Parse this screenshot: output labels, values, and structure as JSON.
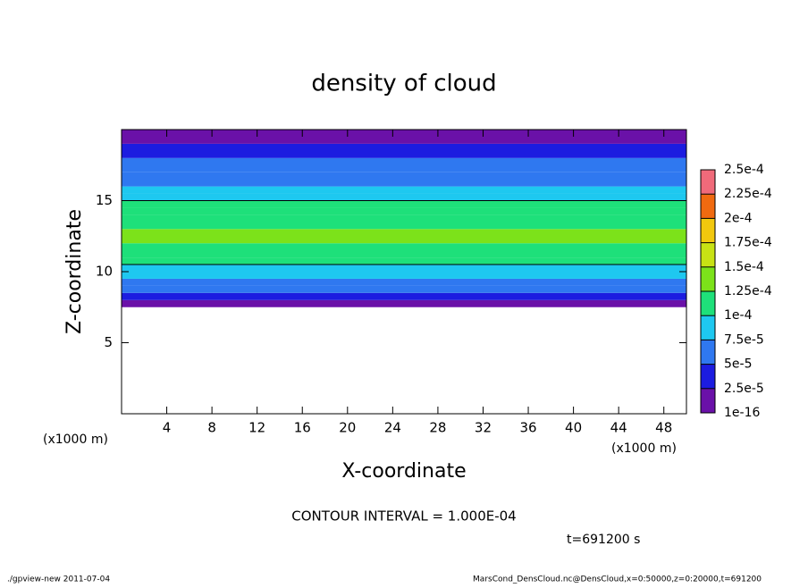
{
  "chart_data": {
    "type": "profile-map",
    "title": "density of cloud",
    "x_label": "X-coordinate",
    "y_label": "Z-coordinate",
    "x_unit": "(x1000 m)",
    "y_unit": "(x1000 m)",
    "xlim": [
      0,
      50
    ],
    "ylim": [
      0,
      20
    ],
    "xticks": [
      4,
      8,
      12,
      16,
      20,
      24,
      28,
      32,
      36,
      40,
      44,
      48
    ],
    "yticks": [
      5,
      10,
      15
    ],
    "z_bins": [
      7.5,
      8,
      8.5,
      9,
      9.5,
      10,
      10.5,
      11,
      12,
      13,
      14,
      14.5,
      15,
      15.5,
      16,
      17,
      18,
      19,
      20
    ],
    "values": [
      1.5e-05,
      3.5e-05,
      5.5e-05,
      7e-05,
      8.5e-05,
      9.5e-05,
      0.000105,
      0.000115,
      0.00013,
      0.00012,
      0.00011,
      0.000102,
      9e-05,
      8e-05,
      6.5e-05,
      5e-05,
      3.5e-05,
      2e-05
    ],
    "levels": [
      {
        "value": 1e-16,
        "label": "1e-16"
      },
      {
        "value": 2.5e-05,
        "label": "2.5e-5"
      },
      {
        "value": 5e-05,
        "label": "5e-5"
      },
      {
        "value": 7.5e-05,
        "label": "7.5e-5"
      },
      {
        "value": 0.0001,
        "label": "1e-4"
      },
      {
        "value": 0.000125,
        "label": "1.25e-4"
      },
      {
        "value": 0.00015,
        "label": "1.5e-4"
      },
      {
        "value": 0.000175,
        "label": "1.75e-4"
      },
      {
        "value": 0.0002,
        "label": "2e-4"
      },
      {
        "value": 0.000225,
        "label": "2.25e-4"
      },
      {
        "value": 0.00025,
        "label": "2.5e-4"
      }
    ],
    "colors": [
      "#6a11a8",
      "#1c1ce0",
      "#2f78f0",
      "#1ec8f0",
      "#1ee07a",
      "#7ce21a",
      "#c8e214",
      "#f2c80e",
      "#f06a10",
      "#f06a7a"
    ],
    "contour_interval": 0.0001,
    "contour_text": "CONTOUR INTERVAL = 1.000E-04",
    "time_text": "t=691200 s",
    "footer_left": "./gpview-new   2011-07-04",
    "footer_right": "MarsCond_DensCloud.nc@DensCloud,x=0:50000,z=0:20000,t=691200"
  }
}
